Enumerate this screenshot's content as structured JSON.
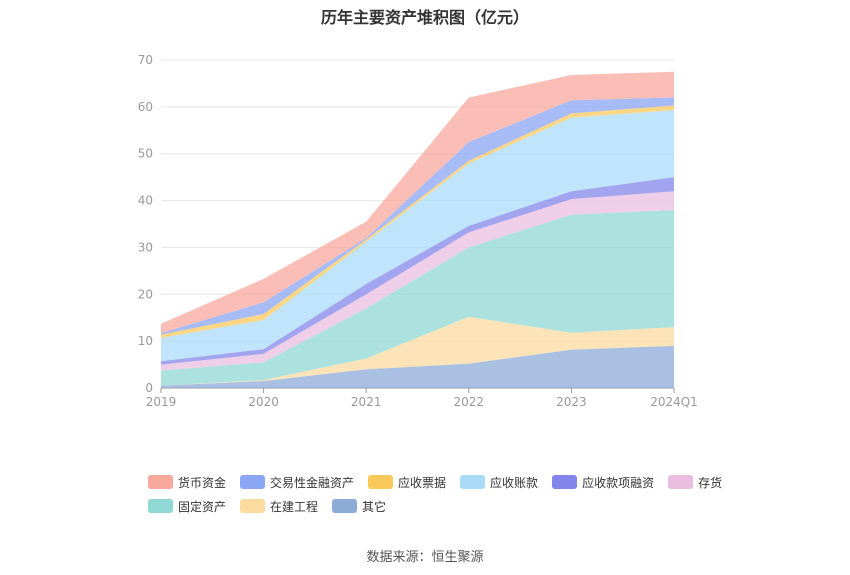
{
  "title": "历年主要资产堆积图（亿元）",
  "source": "数据来源：恒生聚源",
  "chart_data": {
    "type": "area",
    "stacked": true,
    "title": "历年主要资产堆积图（亿元）",
    "categories": [
      "2019",
      "2020",
      "2021",
      "2022",
      "2023",
      "2024Q1"
    ],
    "ylim": [
      0,
      70
    ],
    "yticks": [
      0,
      10,
      20,
      30,
      40,
      50,
      60,
      70
    ],
    "grid": true,
    "legend_position": "bottom",
    "series": [
      {
        "name": "其它",
        "color": "#8eabd8",
        "values": [
          0.5,
          1.5,
          4,
          5.2,
          8.2,
          9
        ]
      },
      {
        "name": "在建工程",
        "color": "#fbdba0",
        "values": [
          0,
          0.2,
          2.3,
          10,
          3.6,
          4
        ]
      },
      {
        "name": "固定资产",
        "color": "#8fd8d6",
        "values": [
          3.2,
          3.8,
          10.7,
          14.8,
          25.2,
          25
        ]
      },
      {
        "name": "存货",
        "color": "#e9bde0",
        "values": [
          1.3,
          1.8,
          3,
          3.2,
          3.3,
          4
        ]
      },
      {
        "name": "应收款项融资",
        "color": "#8385ea",
        "values": [
          0.7,
          1,
          2.2,
          1.4,
          1.7,
          3
        ]
      },
      {
        "name": "应收账款",
        "color": "#a9dbf9",
        "values": [
          5,
          6.2,
          9,
          13.3,
          15.7,
          14.3
        ]
      },
      {
        "name": "应收票据",
        "color": "#f9c95c",
        "values": [
          0.7,
          1.3,
          0.5,
          0.6,
          0.9,
          1
        ]
      },
      {
        "name": "交易性金融资产",
        "color": "#8aa6f4",
        "values": [
          0.3,
          2.5,
          0.3,
          4,
          2.8,
          1.7
        ]
      },
      {
        "name": "货币资金",
        "color": "#f8a89d",
        "values": [
          2,
          5,
          3.5,
          9.5,
          5.4,
          5.5
        ]
      }
    ]
  }
}
